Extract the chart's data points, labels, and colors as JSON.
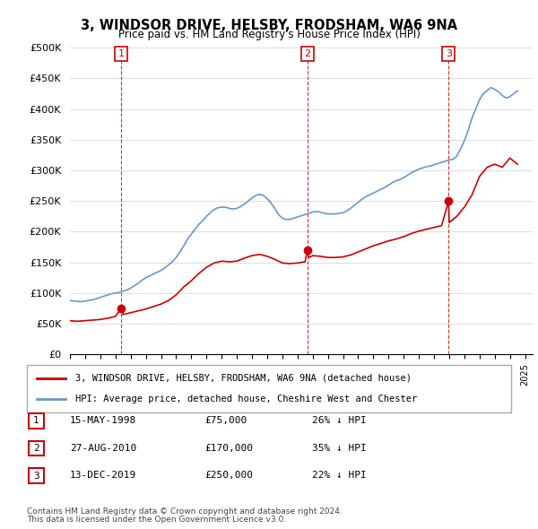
{
  "title": "3, WINDSOR DRIVE, HELSBY, FRODSHAM, WA6 9NA",
  "subtitle": "Price paid vs. HM Land Registry's House Price Index (HPI)",
  "ylabel_ticks": [
    "£0",
    "£50K",
    "£100K",
    "£150K",
    "£200K",
    "£250K",
    "£300K",
    "£350K",
    "£400K",
    "£450K",
    "£500K"
  ],
  "ylim": [
    0,
    500000
  ],
  "xlim_start": 1995.0,
  "xlim_end": 2025.5,
  "sale_points": [
    {
      "number": 1,
      "year": 1998.37,
      "price": 75000,
      "date": "15-MAY-1998",
      "pct": "26%"
    },
    {
      "number": 2,
      "year": 2010.65,
      "price": 170000,
      "date": "27-AUG-2010",
      "pct": "35%"
    },
    {
      "number": 3,
      "year": 2019.96,
      "price": 250000,
      "date": "13-DEC-2019",
      "pct": "22%"
    }
  ],
  "hpi_line_color": "#6699cc",
  "sale_line_color": "#cc0000",
  "sale_dot_color": "#cc0000",
  "vline_color": "#cc0000",
  "marker_box_color": "#cc0000",
  "legend_label_red": "3, WINDSOR DRIVE, HELSBY, FRODSHAM, WA6 9NA (detached house)",
  "legend_label_blue": "HPI: Average price, detached house, Cheshire West and Chester",
  "footer_line1": "Contains HM Land Registry data © Crown copyright and database right 2024.",
  "footer_line2": "This data is licensed under the Open Government Licence v3.0.",
  "table_rows": [
    {
      "num": "1",
      "date": "15-MAY-1998",
      "price": "£75,000",
      "pct": "26% ↓ HPI"
    },
    {
      "num": "2",
      "date": "27-AUG-2010",
      "price": "£170,000",
      "pct": "35% ↓ HPI"
    },
    {
      "num": "3",
      "date": "13-DEC-2019",
      "price": "£250,000",
      "pct": "22% ↓ HPI"
    }
  ],
  "hpi_data": {
    "years": [
      1995.0,
      1995.25,
      1995.5,
      1995.75,
      1996.0,
      1996.25,
      1996.5,
      1996.75,
      1997.0,
      1997.25,
      1997.5,
      1997.75,
      1998.0,
      1998.25,
      1998.5,
      1998.75,
      1999.0,
      1999.25,
      1999.5,
      1999.75,
      2000.0,
      2000.25,
      2000.5,
      2000.75,
      2001.0,
      2001.25,
      2001.5,
      2001.75,
      2002.0,
      2002.25,
      2002.5,
      2002.75,
      2003.0,
      2003.25,
      2003.5,
      2003.75,
      2004.0,
      2004.25,
      2004.5,
      2004.75,
      2005.0,
      2005.25,
      2005.5,
      2005.75,
      2006.0,
      2006.25,
      2006.5,
      2006.75,
      2007.0,
      2007.25,
      2007.5,
      2007.75,
      2008.0,
      2008.25,
      2008.5,
      2008.75,
      2009.0,
      2009.25,
      2009.5,
      2009.75,
      2010.0,
      2010.25,
      2010.5,
      2010.75,
      2011.0,
      2011.25,
      2011.5,
      2011.75,
      2012.0,
      2012.25,
      2012.5,
      2012.75,
      2013.0,
      2013.25,
      2013.5,
      2013.75,
      2014.0,
      2014.25,
      2014.5,
      2014.75,
      2015.0,
      2015.25,
      2015.5,
      2015.75,
      2016.0,
      2016.25,
      2016.5,
      2016.75,
      2017.0,
      2017.25,
      2017.5,
      2017.75,
      2018.0,
      2018.25,
      2018.5,
      2018.75,
      2019.0,
      2019.25,
      2019.5,
      2019.75,
      2020.0,
      2020.25,
      2020.5,
      2020.75,
      2021.0,
      2021.25,
      2021.5,
      2021.75,
      2022.0,
      2022.25,
      2022.5,
      2022.75,
      2023.0,
      2023.25,
      2023.5,
      2023.75,
      2024.0,
      2024.25,
      2024.5
    ],
    "values": [
      88000,
      87000,
      86500,
      86000,
      87000,
      88000,
      89000,
      91000,
      93000,
      95000,
      97000,
      99000,
      100000,
      101000,
      103000,
      105000,
      108000,
      112000,
      116000,
      121000,
      125000,
      128000,
      131000,
      134000,
      137000,
      141000,
      146000,
      151000,
      158000,
      167000,
      177000,
      188000,
      196000,
      204000,
      212000,
      218000,
      225000,
      231000,
      236000,
      239000,
      240000,
      240000,
      238000,
      237000,
      238000,
      241000,
      245000,
      250000,
      255000,
      259000,
      261000,
      259000,
      254000,
      247000,
      238000,
      228000,
      222000,
      220000,
      220000,
      222000,
      224000,
      226000,
      228000,
      230000,
      232000,
      233000,
      232000,
      230000,
      229000,
      229000,
      229000,
      230000,
      231000,
      234000,
      238000,
      243000,
      248000,
      253000,
      257000,
      260000,
      263000,
      266000,
      269000,
      272000,
      276000,
      280000,
      283000,
      285000,
      288000,
      292000,
      296000,
      299000,
      302000,
      304000,
      306000,
      307000,
      309000,
      311000,
      313000,
      315000,
      317000,
      318000,
      323000,
      335000,
      348000,
      365000,
      385000,
      400000,
      415000,
      425000,
      430000,
      435000,
      432000,
      428000,
      422000,
      418000,
      420000,
      425000,
      430000
    ]
  },
  "property_data": {
    "years": [
      1995.0,
      1995.5,
      1996.0,
      1996.5,
      1997.0,
      1997.5,
      1998.0,
      1998.37,
      1998.5,
      1999.0,
      1999.5,
      2000.0,
      2000.5,
      2001.0,
      2001.5,
      2002.0,
      2002.5,
      2003.0,
      2003.5,
      2004.0,
      2004.5,
      2005.0,
      2005.5,
      2006.0,
      2006.5,
      2007.0,
      2007.5,
      2008.0,
      2008.5,
      2009.0,
      2009.5,
      2010.0,
      2010.5,
      2010.65,
      2010.75,
      2011.0,
      2011.5,
      2012.0,
      2012.5,
      2013.0,
      2013.5,
      2014.0,
      2014.5,
      2015.0,
      2015.5,
      2016.0,
      2016.5,
      2017.0,
      2017.5,
      2018.0,
      2018.5,
      2019.0,
      2019.5,
      2019.96,
      2020.0,
      2020.5,
      2021.0,
      2021.5,
      2022.0,
      2022.5,
      2023.0,
      2023.5,
      2024.0,
      2024.5
    ],
    "values": [
      55000,
      54000,
      55000,
      56000,
      57000,
      59000,
      62000,
      75000,
      65000,
      68000,
      71000,
      74000,
      78000,
      82000,
      88000,
      97000,
      110000,
      120000,
      132000,
      142000,
      149000,
      152000,
      151000,
      152000,
      157000,
      161000,
      163000,
      160000,
      155000,
      149000,
      148000,
      149000,
      151000,
      170000,
      158000,
      161000,
      160000,
      158000,
      158000,
      159000,
      162000,
      167000,
      172000,
      177000,
      181000,
      185000,
      188000,
      192000,
      197000,
      201000,
      204000,
      207000,
      210000,
      250000,
      215000,
      225000,
      240000,
      260000,
      290000,
      305000,
      310000,
      305000,
      320000,
      310000
    ]
  }
}
